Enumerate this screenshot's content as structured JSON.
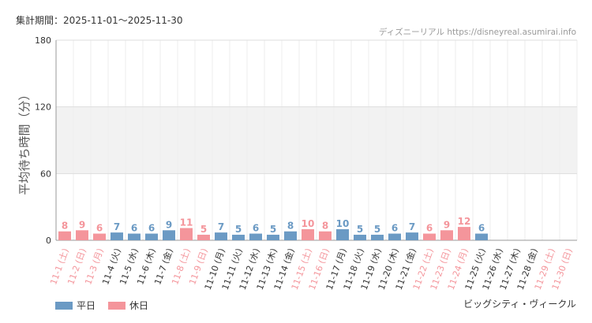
{
  "header": {
    "period": "集計期間：2025-11-01〜2025-11-30",
    "source": "ディズニーリアル https://disneyreal.asumirai.info"
  },
  "footer": {
    "attraction": "ビッグシティ・ヴィークル"
  },
  "colors": {
    "weekday": "#6b9ac4",
    "holiday": "#f4959b",
    "grid": "#e5e5e5",
    "band": "#f2f2f2",
    "text": "#333333"
  },
  "chart_data": {
    "type": "bar",
    "ylabel": "平均待ち時間（分）",
    "ylim": [
      0,
      180
    ],
    "yticks": [
      0,
      60,
      120,
      180
    ],
    "shaded_band": [
      60,
      120
    ],
    "legend": [
      {
        "name": "平日",
        "color_key": "weekday"
      },
      {
        "name": "休日",
        "color_key": "holiday"
      }
    ],
    "categories": [
      "11-1 (土)",
      "11-2 (日)",
      "11-3 (月)",
      "11-4 (火)",
      "11-5 (水)",
      "11-6 (木)",
      "11-7 (金)",
      "11-8 (土)",
      "11-9 (日)",
      "11-10 (月)",
      "11-11 (火)",
      "11-12 (水)",
      "11-13 (木)",
      "11-14 (金)",
      "11-15 (土)",
      "11-16 (日)",
      "11-17 (月)",
      "11-18 (火)",
      "11-19 (水)",
      "11-20 (木)",
      "11-21 (金)",
      "11-22 (土)",
      "11-23 (日)",
      "11-24 (月)",
      "11-25 (火)",
      "11-26 (水)",
      "11-27 (木)",
      "11-28 (金)",
      "11-29 (土)",
      "11-30 (日)"
    ],
    "values": [
      8,
      9,
      6,
      7,
      6,
      6,
      9,
      11,
      5,
      7,
      5,
      6,
      5,
      8,
      10,
      8,
      10,
      5,
      5,
      6,
      7,
      6,
      9,
      12,
      6,
      null,
      null,
      null,
      null,
      null
    ],
    "day_type": [
      "holiday",
      "holiday",
      "holiday",
      "weekday",
      "weekday",
      "weekday",
      "weekday",
      "holiday",
      "holiday",
      "weekday",
      "weekday",
      "weekday",
      "weekday",
      "weekday",
      "holiday",
      "holiday",
      "weekday",
      "weekday",
      "weekday",
      "weekday",
      "weekday",
      "holiday",
      "holiday",
      "holiday",
      "weekday",
      "weekday",
      "weekday",
      "weekday",
      "holiday",
      "holiday"
    ]
  }
}
